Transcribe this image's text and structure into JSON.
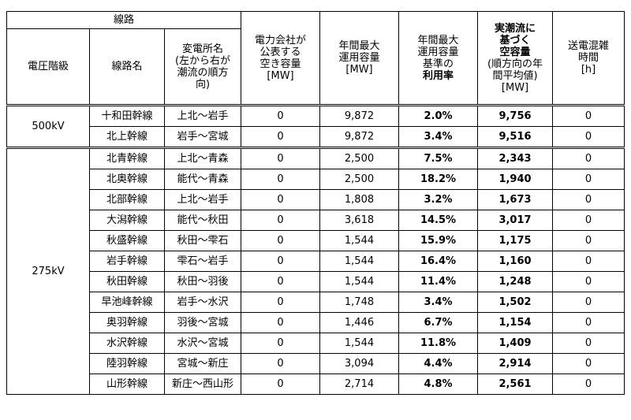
{
  "header": {
    "group": "線路",
    "columns": [
      [
        "電圧階級"
      ],
      [
        "線路名"
      ],
      [
        "変電所名",
        "(左から右が",
        "潮流の順方",
        "向)"
      ],
      [
        "電力会社が",
        "公表する",
        "空き容量",
        "[MW]"
      ],
      [
        "年間最大",
        "運用容量",
        "[MW]"
      ],
      [
        "年間最大",
        "運用容量",
        "基準の",
        "利用率"
      ],
      [
        "実潮流に",
        "基づく",
        "空容量",
        "(順方向の年",
        "間平均値)",
        "[MW]"
      ],
      [
        "送電混雑",
        "時間",
        "[h]"
      ]
    ]
  },
  "groups": [
    {
      "voltage": "500kV",
      "rows": [
        [
          "十和田幹線",
          "上北～岩手",
          "0",
          "9,872",
          "2.0%",
          "9,756",
          "0"
        ],
        [
          "北上幹線",
          "岩手～宮城",
          "0",
          "9,872",
          "3.4%",
          "9,516",
          "0"
        ]
      ]
    },
    {
      "voltage": "275kV",
      "rows": [
        [
          "北青幹線",
          "上北～青森",
          "0",
          "2,500",
          "7.5%",
          "2,343",
          "0"
        ],
        [
          "北奥幹線",
          "能代～青森",
          "0",
          "2,500",
          "18.2%",
          "1,940",
          "0"
        ],
        [
          "北部幹線",
          "上北～岩手",
          "0",
          "1,808",
          "3.2%",
          "1,673",
          "0"
        ],
        [
          "大潟幹線",
          "能代～秋田",
          "0",
          "3,618",
          "14.5%",
          "3,017",
          "0"
        ],
        [
          "秋盛幹線",
          "秋田～雫石",
          "0",
          "1,544",
          "15.9%",
          "1,175",
          "0"
        ],
        [
          "岩手幹線",
          "雫石～岩手",
          "0",
          "1,544",
          "16.4%",
          "1,160",
          "0"
        ],
        [
          "秋田幹線",
          "秋田～羽後",
          "0",
          "1,544",
          "11.4%",
          "1,248",
          "0"
        ],
        [
          "早池峰幹線",
          "岩手～水沢",
          "0",
          "1,748",
          "3.4%",
          "1,502",
          "0"
        ],
        [
          "奥羽幹線",
          "羽後～宮城",
          "0",
          "1,446",
          "6.7%",
          "1,154",
          "0"
        ],
        [
          "水沢幹線",
          "水沢～宮城",
          "0",
          "1,544",
          "11.8%",
          "1,409",
          "0"
        ],
        [
          "陸羽幹線",
          "宮城～新庄",
          "0",
          "3,094",
          "4.4%",
          "2,914",
          "0"
        ],
        [
          "山形幹線",
          "新庄～西山形",
          "0",
          "2,714",
          "4.8%",
          "2,561",
          "0"
        ]
      ]
    }
  ]
}
